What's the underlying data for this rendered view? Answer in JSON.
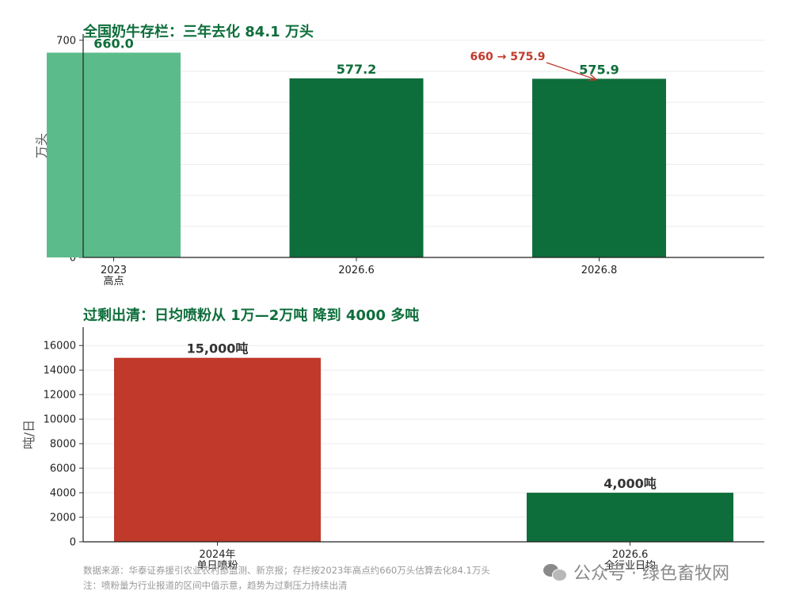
{
  "chart_data": [
    {
      "type": "bar",
      "title": "全国奶牛存栏：三年去化 84.1 万头",
      "ylabel": "万头",
      "xlabel": "",
      "categories": [
        [
          "2023",
          "高点"
        ],
        [
          "2026.6"
        ],
        [
          "2026.8"
        ]
      ],
      "values": [
        660.0,
        577.2,
        575.9
      ],
      "value_labels": [
        "660.0",
        "577.2",
        "575.9"
      ],
      "bar_colors": [
        "#5cbb8a",
        "#0e6e3b",
        "#0e6e3b"
      ],
      "ylim": [
        0,
        720
      ],
      "yticks": [
        0,
        100,
        200,
        300,
        400,
        500,
        600,
        700
      ],
      "grid": true,
      "annotation": {
        "text": "660 → 575.9",
        "color": "#c0392b",
        "points_to_index": 2
      },
      "title_color": "#0e6e3b",
      "label_color": "#0e6e3b"
    },
    {
      "type": "bar",
      "title": "过剩出清：日均喷粉从 1万—2万吨 降到 4000 多吨",
      "ylabel": "吨/日",
      "xlabel": "",
      "categories": [
        [
          "2024年",
          "单日喷粉"
        ],
        [
          "2026.6",
          "全行业日均"
        ]
      ],
      "values": [
        15000,
        4000
      ],
      "value_labels": [
        "15,000吨",
        "4,000吨"
      ],
      "bar_colors": [
        "#c0392b",
        "#0e6e3b"
      ],
      "ylim": [
        0,
        17500
      ],
      "yticks": [
        0,
        2000,
        4000,
        6000,
        8000,
        10000,
        12000,
        14000,
        16000
      ],
      "grid": true,
      "title_color": "#0e6e3b",
      "label_color": "#333333"
    }
  ],
  "footer": {
    "source": "数据来源：华泰证券援引农业农村部监测、新京报；存栏按2023年高点约660万头估算去化84.1万头",
    "note": "注：喷粉量为行业报道的区间中值示意，趋势为过剩压力持续出清"
  },
  "watermark": {
    "icon": "wechat-icon",
    "text": "公众号 · 绿色畜牧网"
  }
}
